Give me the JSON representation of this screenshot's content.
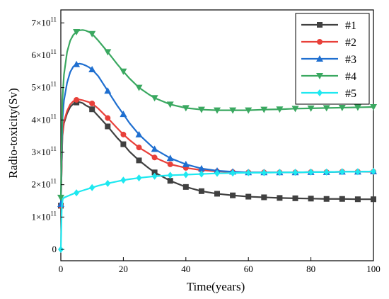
{
  "chart_data": {
    "type": "line",
    "xlabel": "Time(years)",
    "ylabel": "Radio-toxicity(Sv)",
    "xlim": [
      0,
      100
    ],
    "ylim": [
      -35000000000.0,
      740000000000.0
    ],
    "x_ticks": [
      0,
      20,
      40,
      60,
      80,
      100
    ],
    "x_tick_labels": [
      "0",
      "20",
      "40",
      "60",
      "80",
      "100"
    ],
    "y_ticks": [
      0,
      100000000000.0,
      200000000000.0,
      300000000000.0,
      400000000000.0,
      500000000000.0,
      600000000000.0,
      700000000000.0
    ],
    "y_tick_mantissa": [
      "0",
      "1",
      "2",
      "3",
      "4",
      "5",
      "6",
      "7"
    ],
    "y_tick_base": "×10",
    "y_tick_exponent": "11",
    "legend_position": "top-right",
    "grid": false,
    "series": [
      {
        "name": "#1",
        "color": "#404040",
        "marker": "square",
        "x": [
          0.01,
          0.5,
          1,
          2,
          3,
          4,
          5,
          6,
          7,
          8,
          9,
          10,
          12,
          15,
          18,
          20,
          22,
          25,
          28,
          30,
          35,
          40,
          45,
          50,
          55,
          60,
          65,
          70,
          75,
          80,
          85,
          90,
          95,
          100
        ],
        "y": [
          135000000000.0,
          350000000000.0,
          390000000000.0,
          420000000000.0,
          440000000000.0,
          450000000000.0,
          454000000000.0,
          455000000000.0,
          452000000000.0,
          445000000000.0,
          440000000000.0,
          433000000000.0,
          412000000000.0,
          380000000000.0,
          345000000000.0,
          325000000000.0,
          302000000000.0,
          275000000000.0,
          252000000000.0,
          238000000000.0,
          212000000000.0,
          193000000000.0,
          180000000000.0,
          172000000000.0,
          167000000000.0,
          163000000000.0,
          161000000000.0,
          159000000000.0,
          158000000000.0,
          157000000000.0,
          156000000000.0,
          156000000000.0,
          155000000000.0,
          155000000000.0
        ],
        "marker_x": [
          0,
          5,
          10,
          15,
          20,
          25,
          30,
          35,
          40,
          45,
          50,
          55,
          60,
          65,
          70,
          75,
          80,
          85,
          90,
          95,
          100
        ]
      },
      {
        "name": "#2",
        "color": "#e8403a",
        "marker": "circle",
        "x": [
          0.01,
          0.5,
          1,
          2,
          3,
          4,
          5,
          6,
          7,
          8,
          9,
          10,
          12,
          15,
          18,
          20,
          22,
          25,
          28,
          30,
          35,
          40,
          45,
          50,
          55,
          60,
          65,
          70,
          75,
          80,
          85,
          90,
          95,
          100
        ],
        "y": [
          135000000000.0,
          355000000000.0,
          395000000000.0,
          428000000000.0,
          448000000000.0,
          458000000000.0,
          462000000000.0,
          463000000000.0,
          461000000000.0,
          458000000000.0,
          455000000000.0,
          451000000000.0,
          435000000000.0,
          406000000000.0,
          375000000000.0,
          355000000000.0,
          338000000000.0,
          315000000000.0,
          297000000000.0,
          284000000000.0,
          263000000000.0,
          252000000000.0,
          245000000000.0,
          241000000000.0,
          239000000000.0,
          238000000000.0,
          238000000000.0,
          238000000000.0,
          238000000000.0,
          239000000000.0,
          239000000000.0,
          240000000000.0,
          240000000000.0,
          240000000000.0
        ],
        "marker_x": [
          0,
          5,
          10,
          15,
          20,
          25,
          30,
          35,
          40,
          45,
          50,
          55,
          60,
          65,
          70,
          75,
          80,
          85,
          90,
          95,
          100
        ]
      },
      {
        "name": "#3",
        "color": "#1f6fd0",
        "marker": "triangle-up",
        "x": [
          0.01,
          0.5,
          1,
          2,
          3,
          4,
          5,
          6,
          7,
          8,
          9,
          10,
          12,
          15,
          18,
          20,
          22,
          25,
          28,
          30,
          35,
          40,
          45,
          50,
          55,
          60,
          65,
          70,
          75,
          80,
          85,
          90,
          95,
          100
        ],
        "y": [
          140000000000.0,
          400000000000.0,
          460000000000.0,
          515000000000.0,
          548000000000.0,
          565000000000.0,
          572000000000.0,
          574000000000.0,
          572000000000.0,
          568000000000.0,
          563000000000.0,
          556000000000.0,
          535000000000.0,
          490000000000.0,
          445000000000.0,
          418000000000.0,
          390000000000.0,
          355000000000.0,
          328000000000.0,
          310000000000.0,
          282000000000.0,
          263000000000.0,
          250000000000.0,
          243000000000.0,
          240000000000.0,
          238000000000.0,
          238000000000.0,
          238000000000.0,
          238000000000.0,
          239000000000.0,
          239000000000.0,
          240000000000.0,
          240000000000.0,
          241000000000.0
        ],
        "marker_x": [
          0,
          5,
          10,
          15,
          20,
          25,
          30,
          35,
          40,
          45,
          50,
          55,
          60,
          65,
          70,
          75,
          80,
          85,
          90,
          95,
          100
        ]
      },
      {
        "name": "#4",
        "color": "#3aa860",
        "marker": "triangle-down",
        "x": [
          0.01,
          0.5,
          1,
          2,
          3,
          4,
          5,
          6,
          7,
          8,
          9,
          10,
          12,
          15,
          18,
          20,
          22,
          25,
          28,
          30,
          35,
          40,
          45,
          50,
          55,
          60,
          65,
          70,
          75,
          80,
          85,
          90,
          95,
          100
        ],
        "y": [
          160000000000.0,
          460000000000.0,
          540000000000.0,
          610000000000.0,
          645000000000.0,
          663000000000.0,
          672000000000.0,
          677000000000.0,
          678000000000.0,
          676000000000.0,
          672000000000.0,
          666000000000.0,
          645000000000.0,
          610000000000.0,
          573000000000.0,
          550000000000.0,
          528000000000.0,
          500000000000.0,
          480000000000.0,
          468000000000.0,
          448000000000.0,
          437000000000.0,
          432000000000.0,
          430000000000.0,
          430000000000.0,
          430000000000.0,
          432000000000.0,
          433000000000.0,
          435000000000.0,
          436000000000.0,
          437000000000.0,
          438000000000.0,
          439000000000.0,
          440000000000.0
        ],
        "marker_x": [
          0,
          5,
          10,
          15,
          20,
          25,
          30,
          35,
          40,
          45,
          50,
          55,
          60,
          65,
          70,
          75,
          80,
          85,
          90,
          95,
          100
        ]
      },
      {
        "name": "#5",
        "color": "#1ee8f0",
        "marker": "diamond",
        "x": [
          0.01,
          0.3,
          0.6,
          1,
          2,
          3,
          4,
          5,
          6,
          8,
          10,
          12,
          15,
          18,
          20,
          22,
          25,
          28,
          30,
          35,
          40,
          45,
          50,
          55,
          60,
          65,
          70,
          75,
          80,
          85,
          90,
          95,
          100
        ],
        "y": [
          0.0,
          130000000000.0,
          155000000000.0,
          160000000000.0,
          164000000000.0,
          168000000000.0,
          172000000000.0,
          175000000000.0,
          179000000000.0,
          185000000000.0,
          191000000000.0,
          197000000000.0,
          204000000000.0,
          210000000000.0,
          214000000000.0,
          217000000000.0,
          221000000000.0,
          224000000000.0,
          226000000000.0,
          229000000000.0,
          231000000000.0,
          233000000000.0,
          235000000000.0,
          236000000000.0,
          237000000000.0,
          237000000000.0,
          238000000000.0,
          238000000000.0,
          239000000000.0,
          239000000000.0,
          240000000000.0,
          240000000000.0,
          241000000000.0
        ],
        "marker_x": [
          0,
          5,
          10,
          15,
          20,
          25,
          30,
          35,
          40,
          45,
          50,
          55,
          60,
          65,
          70,
          75,
          80,
          85,
          90,
          95,
          100
        ]
      }
    ]
  }
}
